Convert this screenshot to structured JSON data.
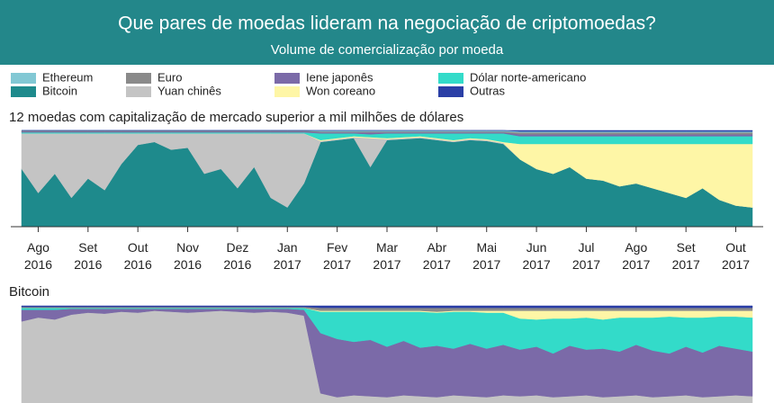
{
  "header": {
    "title": "Que pares de moedas lideram na negociação de criptomoedas?",
    "subtitle": "Volume de comercialização por moeda"
  },
  "chart_data": [
    {
      "type": "area",
      "stacked": true,
      "title": "12 moedas com capitalização de mercado superior a mil milhões de dólares",
      "categories": [
        null,
        "Ago 2016",
        null,
        null,
        "Set 2016",
        null,
        null,
        "Out 2016",
        null,
        null,
        "Nov 2016",
        null,
        null,
        "Dez 2016",
        null,
        null,
        "Jan 2017",
        null,
        null,
        "Fev 2017",
        null,
        null,
        "Mar 2017",
        null,
        null,
        "Abr 2017",
        null,
        null,
        "Mai 2017",
        null,
        null,
        "Jun 2017",
        null,
        null,
        "Jul 2017",
        null,
        null,
        "Ago 2017",
        null,
        null,
        "Set 2017",
        null,
        null,
        "Out 2017",
        null
      ],
      "ylim": [
        0,
        100
      ],
      "series": [
        {
          "name": "Bitcoin",
          "color": "#1e8a8c",
          "values": [
            60,
            35,
            55,
            30,
            50,
            38,
            65,
            85,
            88,
            80,
            82,
            55,
            60,
            40,
            62,
            30,
            20,
            45,
            88,
            90,
            92,
            62,
            90,
            91,
            92,
            90,
            88,
            90,
            89,
            86,
            70,
            60,
            55,
            62,
            50,
            48,
            42,
            45,
            40,
            35,
            30,
            40,
            28,
            22,
            20
          ]
        },
        {
          "name": "Yuan chinês",
          "color": "#c4c4c4",
          "values": [
            37,
            62,
            42,
            67,
            47,
            59,
            32,
            12,
            9,
            17,
            15,
            42,
            37,
            57,
            35,
            67,
            77,
            52,
            1,
            1,
            1,
            30,
            1,
            1,
            1,
            1,
            1,
            1,
            1,
            1,
            0,
            0,
            0,
            0,
            0,
            0,
            0,
            0,
            0,
            0,
            0,
            0,
            0,
            0,
            0
          ]
        },
        {
          "name": "Won coreano",
          "color": "#fef6a6",
          "values": [
            0,
            0,
            0,
            0,
            0,
            0,
            0,
            0,
            0,
            0,
            0,
            0,
            0,
            0,
            0,
            0,
            0,
            0,
            1,
            1,
            1,
            1,
            1,
            1,
            1,
            1,
            1,
            1,
            1,
            1,
            16,
            26,
            31,
            24,
            36,
            38,
            44,
            41,
            46,
            51,
            56,
            46,
            58,
            64,
            66
          ]
        },
        {
          "name": "Dólar norte-americano",
          "color": "#33dbc9",
          "values": [
            1,
            1,
            1,
            1,
            1,
            1,
            1,
            1,
            1,
            1,
            1,
            1,
            1,
            1,
            1,
            1,
            1,
            1,
            7,
            5,
            3,
            3,
            5,
            4,
            3,
            5,
            7,
            5,
            6,
            9,
            8,
            8,
            8,
            8,
            8,
            8,
            8,
            8,
            8,
            8,
            8,
            8,
            8,
            8,
            8
          ]
        },
        {
          "name": "Iene japonês",
          "color": "#7b6aa8",
          "values": [
            1,
            1,
            1,
            1,
            1,
            1,
            1,
            1,
            1,
            1,
            1,
            1,
            1,
            1,
            1,
            1,
            1,
            1,
            1,
            1,
            1,
            2,
            1,
            1,
            1,
            1,
            1,
            1,
            1,
            1,
            2,
            2,
            2,
            2,
            2,
            2,
            2,
            2,
            2,
            2,
            2,
            2,
            2,
            2,
            2
          ]
        },
        {
          "name": "Euro",
          "color": "#8a8a8a",
          "values": [
            1,
            1,
            1,
            1,
            1,
            1,
            1,
            1,
            1,
            1,
            1,
            1,
            1,
            1,
            1,
            1,
            1,
            1,
            1,
            1,
            1,
            1,
            1,
            1,
            1,
            1,
            1,
            1,
            1,
            1,
            2,
            2,
            2,
            2,
            2,
            2,
            2,
            2,
            2,
            2,
            2,
            2,
            2,
            2,
            2
          ]
        },
        {
          "name": "Ethereum",
          "color": "#82c8d4",
          "values": [
            0,
            0,
            0,
            0,
            0,
            0,
            0,
            0,
            0,
            0,
            0,
            0,
            0,
            0,
            0,
            0,
            0,
            0,
            1,
            1,
            1,
            1,
            1,
            1,
            1,
            1,
            1,
            1,
            1,
            1,
            1,
            1,
            1,
            1,
            1,
            1,
            1,
            1,
            1,
            1,
            1,
            1,
            1,
            1,
            1
          ]
        },
        {
          "name": "Outras",
          "color": "#2b3fa6",
          "values": [
            0,
            0,
            0,
            0,
            0,
            0,
            0,
            0,
            0,
            0,
            0,
            0,
            0,
            0,
            0,
            0,
            0,
            0,
            0,
            0,
            0,
            0,
            0,
            0,
            0,
            0,
            0,
            0,
            0,
            0,
            1,
            1,
            1,
            1,
            1,
            1,
            1,
            1,
            1,
            1,
            1,
            1,
            1,
            1,
            1
          ]
        }
      ]
    },
    {
      "type": "area",
      "stacked": true,
      "title": "Bitcoin",
      "ylim": [
        0,
        100
      ],
      "series": [
        {
          "color": "#c4c4c4",
          "values": [
            84,
            88,
            86,
            91,
            93,
            92,
            94,
            93,
            95,
            94,
            93,
            94,
            95,
            94,
            93,
            94,
            93,
            90,
            10,
            6,
            8,
            7,
            6,
            8,
            7,
            6,
            8,
            7,
            6,
            8,
            7,
            8,
            6,
            7,
            8,
            6,
            7,
            8,
            6,
            7,
            8,
            6,
            7,
            8,
            7
          ]
        },
        {
          "color": "#7b6aa8",
          "values": [
            12,
            8,
            10,
            6,
            4,
            5,
            3,
            4,
            2,
            3,
            4,
            3,
            2,
            3,
            4,
            3,
            4,
            6,
            62,
            60,
            55,
            58,
            52,
            56,
            50,
            53,
            48,
            54,
            50,
            52,
            48,
            50,
            45,
            52,
            47,
            50,
            46,
            52,
            48,
            44,
            50,
            46,
            52,
            48,
            46
          ]
        },
        {
          "color": "#33dbc9",
          "values": [
            2,
            2,
            2,
            1,
            1,
            1,
            1,
            1,
            1,
            1,
            1,
            1,
            1,
            1,
            1,
            1,
            1,
            2,
            22,
            28,
            31,
            29,
            36,
            30,
            37,
            34,
            38,
            33,
            37,
            33,
            32,
            28,
            36,
            28,
            33,
            30,
            35,
            28,
            34,
            38,
            30,
            36,
            30,
            33,
            35
          ]
        },
        {
          "color": "#fef6a6",
          "values": [
            0,
            0,
            0,
            0,
            0,
            0,
            0,
            0,
            0,
            0,
            0,
            0,
            0,
            0,
            0,
            0,
            0,
            0,
            1,
            1,
            1,
            1,
            1,
            1,
            1,
            1,
            1,
            1,
            2,
            2,
            8,
            9,
            8,
            8,
            7,
            9,
            7,
            7,
            7,
            6,
            7,
            7,
            6,
            6,
            7
          ]
        },
        {
          "color": "#8a8a8a",
          "values": [
            1,
            1,
            1,
            1,
            1,
            1,
            1,
            1,
            1,
            1,
            1,
            1,
            1,
            1,
            1,
            1,
            1,
            1,
            3,
            3,
            3,
            3,
            3,
            3,
            3,
            4,
            3,
            3,
            3,
            3,
            3,
            3,
            3,
            3,
            3,
            3,
            3,
            3,
            3,
            3,
            3,
            3,
            3,
            3,
            3
          ]
        },
        {
          "color": "#2b3fa6",
          "values": [
            1,
            1,
            1,
            1,
            1,
            1,
            1,
            1,
            1,
            1,
            1,
            1,
            1,
            1,
            1,
            1,
            1,
            1,
            2,
            2,
            2,
            2,
            2,
            2,
            2,
            2,
            2,
            2,
            2,
            2,
            2,
            2,
            2,
            2,
            2,
            2,
            2,
            2,
            2,
            2,
            2,
            2,
            2,
            2,
            2
          ]
        }
      ]
    }
  ]
}
